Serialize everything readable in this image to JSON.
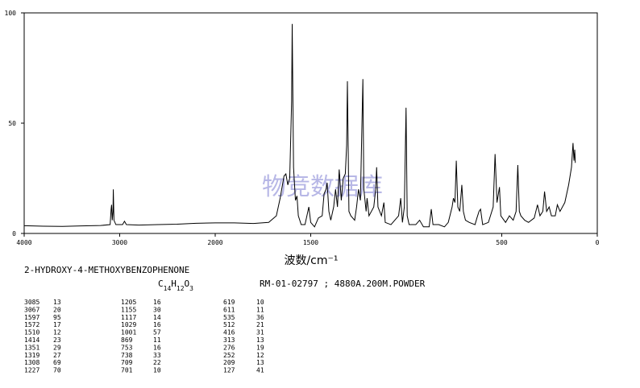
{
  "chart_data": {
    "type": "line",
    "xlabel": "波数/cm⁻¹",
    "watermark": "物竞数据库",
    "compound": "2-HYDROXY-4-METHOXYBENZOPHENONE",
    "formula": "C14H12O3",
    "sample": "RM-01-02797 ; 4880A.200M.POWDER",
    "xlim": [
      4000,
      0
    ],
    "ylim": [
      0,
      100
    ],
    "xscale_change": {
      "at": 2000,
      "ratio": 0.5
    },
    "xticks": [
      4000,
      3000,
      2000,
      1500,
      500,
      0
    ],
    "yticks": [
      0,
      50,
      100
    ],
    "series": [
      {
        "color": "#000000",
        "x": [
          4000,
          3800,
          3600,
          3400,
          3200,
          3100,
          3090,
          3085,
          3078,
          3070,
          3067,
          3060,
          3040,
          2970,
          2950,
          2930,
          2800,
          2600,
          2400,
          2200,
          2000,
          1900,
          1800,
          1720,
          1680,
          1660,
          1640,
          1630,
          1620,
          1610,
          1600,
          1597,
          1590,
          1580,
          1572,
          1565,
          1550,
          1530,
          1520,
          1510,
          1500,
          1480,
          1460,
          1440,
          1430,
          1420,
          1414,
          1405,
          1395,
          1380,
          1370,
          1360,
          1351,
          1340,
          1330,
          1319,
          1312,
          1308,
          1300,
          1290,
          1270,
          1260,
          1250,
          1240,
          1227,
          1222,
          1210,
          1205,
          1195,
          1170,
          1160,
          1155,
          1148,
          1130,
          1117,
          1110,
          1080,
          1060,
          1040,
          1029,
          1020,
          1010,
          1001,
          995,
          985,
          950,
          930,
          910,
          880,
          869,
          860,
          830,
          800,
          780,
          760,
          753,
          745,
          738,
          730,
          720,
          709,
          701,
          690,
          670,
          640,
          630,
          619,
          611,
          600,
          570,
          545,
          535,
          525,
          512,
          505,
          480,
          460,
          440,
          425,
          416,
          408,
          400,
          380,
          360,
          330,
          313,
          300,
          285,
          276,
          265,
          252,
          240,
          220,
          209,
          195,
          170,
          150,
          135,
          127,
          122,
          118,
          115
        ],
        "values": [
          3.5,
          3.3,
          3.2,
          3.4,
          3.6,
          4,
          11,
          13,
          6,
          10,
          20,
          6,
          4,
          4,
          5.5,
          4,
          3.8,
          4,
          4.2,
          4.6,
          4.8,
          4.8,
          4.5,
          5,
          8,
          16,
          26,
          27,
          22,
          25,
          60,
          95,
          30,
          15,
          17,
          8,
          4,
          4,
          8,
          12,
          5,
          3,
          7,
          8,
          18,
          20,
          23,
          10,
          6,
          12,
          20,
          12,
          29,
          15,
          25,
          27,
          40,
          69,
          10,
          8,
          6,
          12,
          20,
          15,
          70,
          20,
          10,
          16,
          8,
          12,
          20,
          30,
          12,
          8,
          14,
          5,
          4,
          6,
          8,
          16,
          5,
          12,
          57,
          8,
          4,
          4,
          6,
          3,
          3,
          11,
          4,
          4,
          3,
          5,
          12,
          16,
          14,
          33,
          12,
          10,
          22,
          10,
          6,
          5,
          4,
          7,
          10,
          11,
          4,
          5,
          12,
          36,
          14,
          21,
          8,
          5,
          8,
          6,
          10,
          31,
          10,
          8,
          6,
          5,
          7,
          13,
          8,
          10,
          19,
          10,
          12,
          8,
          8,
          13,
          10,
          14,
          22,
          30,
          41,
          33,
          38,
          32
        ]
      }
    ]
  },
  "peak_table": [
    [
      [
        3085,
        13
      ],
      [
        3067,
        20
      ],
      [
        1597,
        95
      ],
      [
        1572,
        17
      ],
      [
        1510,
        12
      ],
      [
        1414,
        23
      ],
      [
        1351,
        29
      ],
      [
        1319,
        27
      ],
      [
        1308,
        69
      ],
      [
        1227,
        70
      ]
    ],
    [
      [
        1205,
        16
      ],
      [
        1155,
        30
      ],
      [
        1117,
        14
      ],
      [
        1029,
        16
      ],
      [
        1001,
        57
      ],
      [
        869,
        11
      ],
      [
        753,
        16
      ],
      [
        738,
        33
      ],
      [
        709,
        22
      ],
      [
        701,
        10
      ]
    ],
    [
      [
        619,
        10
      ],
      [
        611,
        11
      ],
      [
        535,
        36
      ],
      [
        512,
        21
      ],
      [
        416,
        31
      ],
      [
        313,
        13
      ],
      [
        276,
        19
      ],
      [
        252,
        12
      ],
      [
        209,
        13
      ],
      [
        127,
        41
      ]
    ]
  ]
}
